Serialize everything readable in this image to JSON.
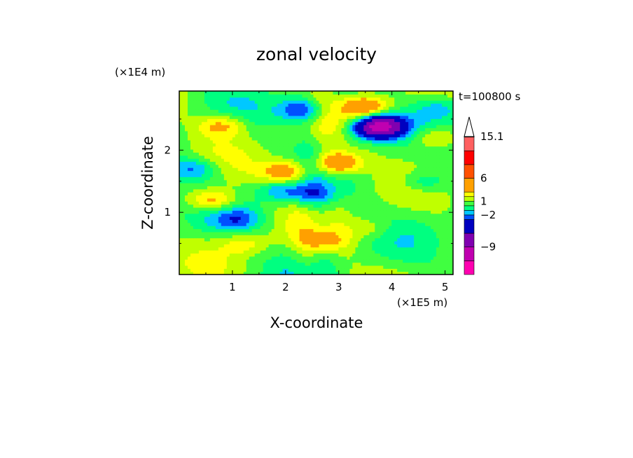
{
  "chart_data": {
    "type": "heatmap",
    "title": "zonal velocity",
    "xlabel": "X-coordinate",
    "ylabel": "Z-coordinate",
    "x_unit": "(×1E5 m)",
    "y_unit": "(×1E4 m)",
    "time_label": "t=100800 s",
    "xlim": [
      0,
      5.15
    ],
    "ylim": [
      0,
      2.95
    ],
    "x_ticks": [
      "1",
      "2",
      "3",
      "4",
      "5"
    ],
    "y_ticks": [
      "1",
      "2"
    ],
    "x_tick_values": [
      1,
      2,
      3,
      4,
      5
    ],
    "y_tick_values": [
      1,
      2
    ],
    "colorbar": {
      "labels": [
        "15.1",
        "6",
        "1",
        "−2",
        "−9"
      ],
      "label_values": [
        15.1,
        6,
        1,
        -2,
        -9
      ],
      "levels": [
        -15,
        -12,
        -9,
        -6,
        -3,
        -2,
        -1,
        0,
        1,
        2,
        3,
        6,
        9,
        12,
        15.1
      ],
      "colors": [
        "#ff00b0",
        "#c000b0",
        "#8000b0",
        "#0000c0",
        "#0050ff",
        "#00c8ff",
        "#00ff80",
        "#40ff40",
        "#c0ff00",
        "#ffff00",
        "#ffa000",
        "#ff5000",
        "#ff0000",
        "#ff6060",
        "#ffb0b0"
      ],
      "top_arrow_color": "#ffffff"
    },
    "field_features": [
      {
        "x": 3.7,
        "z": 2.35,
        "value": -5
      },
      {
        "x": 3.8,
        "z": 2.4,
        "value": -7
      },
      {
        "x": 3.5,
        "z": 2.7,
        "value": 4
      },
      {
        "x": 3.0,
        "z": 1.8,
        "value": 5
      },
      {
        "x": 2.0,
        "z": 1.65,
        "value": 4
      },
      {
        "x": 0.6,
        "z": 1.2,
        "value": 4
      },
      {
        "x": 0.8,
        "z": 2.4,
        "value": 3
      },
      {
        "x": 4.8,
        "z": 2.2,
        "value": 3
      },
      {
        "x": 0.3,
        "z": 1.7,
        "value": -3
      },
      {
        "x": 1.9,
        "z": 1.35,
        "value": -2.5
      },
      {
        "x": 2.5,
        "z": 1.3,
        "value": -2.5
      },
      {
        "x": 1.1,
        "z": 0.9,
        "value": -2.5
      },
      {
        "x": 2.3,
        "z": 2.65,
        "value": -4
      },
      {
        "x": 4.6,
        "z": 1.5,
        "value": -2.5
      },
      {
        "x": 1.2,
        "z": 0.5,
        "value": 2
      },
      {
        "x": 2.7,
        "z": 0.55,
        "value": 2.5
      },
      {
        "x": 3.6,
        "z": 0.75,
        "value": 1.5
      },
      {
        "x": 4.9,
        "z": 2.7,
        "value": -2
      }
    ]
  }
}
